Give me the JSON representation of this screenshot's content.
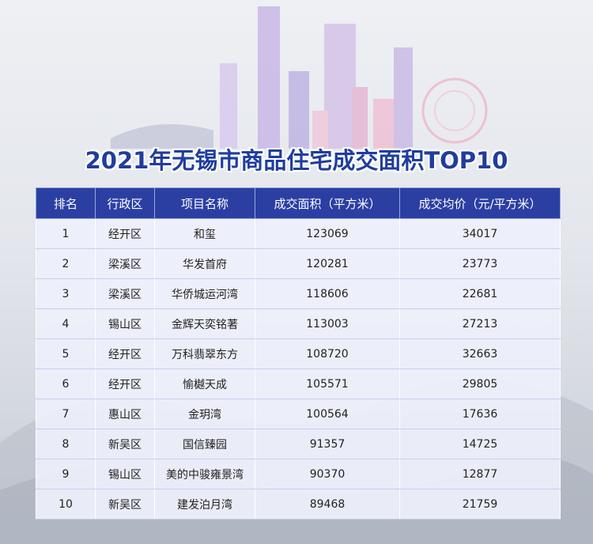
{
  "title": "2021年无锡市商品住宅成交面积TOP10",
  "table": {
    "header": [
      "排名",
      "行政区",
      "项目名称",
      "成交面积（平方米）",
      "成交均价（元/平方米）"
    ],
    "rows": [
      [
        1,
        "经开区",
        "和玺",
        123069,
        34017
      ],
      [
        2,
        "梁溪区",
        "华发首府",
        120281,
        23773
      ],
      [
        3,
        "梁溪区",
        "华侨城运河湾",
        118606,
        22681
      ],
      [
        4,
        "锡山区",
        "金辉天奕铭著",
        113003,
        27213
      ],
      [
        5,
        "经开区",
        "万科翡翠东方",
        108720,
        32663
      ],
      [
        6,
        "经开区",
        "愉樾天成",
        105571,
        29805
      ],
      [
        7,
        "惠山区",
        "金玥湾",
        100564,
        17636
      ],
      [
        8,
        "新吴区",
        "国信臻园",
        91357,
        14725
      ],
      [
        9,
        "锡山区",
        "美的中骏雍景湾",
        90370,
        12877
      ],
      [
        10,
        "新吴区",
        "建发泊月湾",
        89468,
        21759
      ]
    ]
  }
}
